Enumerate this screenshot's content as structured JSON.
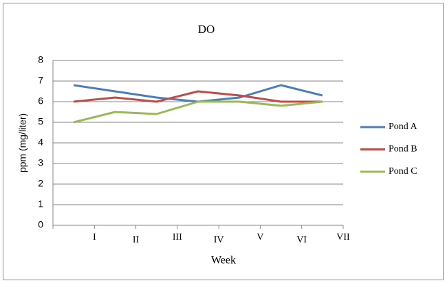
{
  "chart_data": {
    "type": "line",
    "title": "DO",
    "x_label": "Week",
    "y_label": "ppm (mg/liter)",
    "categories": [
      "I",
      "II",
      "III",
      "IV",
      "V",
      "VI",
      "VII"
    ],
    "series": [
      {
        "name": "Pond A",
        "color": "#4a7ebb",
        "values": [
          6.8,
          6.5,
          6.2,
          6.0,
          6.2,
          6.8,
          6.3
        ]
      },
      {
        "name": "Pond B",
        "color": "#be4b48",
        "values": [
          6.0,
          6.2,
          6.0,
          6.5,
          6.3,
          6.0,
          6.0
        ]
      },
      {
        "name": "Pond C",
        "color": "#98b954",
        "values": [
          5.0,
          5.5,
          5.4,
          6.0,
          6.0,
          5.8,
          6.0
        ]
      }
    ],
    "ylim": [
      0,
      8
    ],
    "yticks": [
      0,
      1,
      2,
      3,
      4,
      5,
      6,
      7,
      8
    ],
    "grid": true,
    "legend": "right"
  }
}
